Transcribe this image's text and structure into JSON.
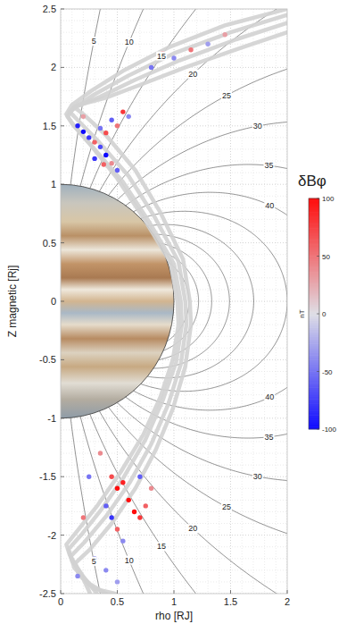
{
  "chart_data": {
    "type": "scatter",
    "xlabel": "rho [RJ]",
    "ylabel": "Z magnetic [Rj]",
    "xlim": [
      0,
      2
    ],
    "ylim": [
      -2.5,
      2.5
    ],
    "xticks": [
      0,
      0.5,
      1,
      1.5,
      2
    ],
    "yticks": [
      -2.5,
      -2,
      -1.5,
      -1,
      -0.5,
      0,
      0.5,
      1,
      1.5,
      2,
      2.5
    ],
    "grid": true,
    "field_lines": {
      "colatitudes": [
        5,
        10,
        15,
        20,
        25,
        30,
        35,
        40,
        45,
        50,
        55,
        60,
        65,
        70
      ],
      "labeled": [
        5,
        10,
        15,
        20,
        25,
        30,
        35,
        40
      ]
    },
    "trajectories": [
      {
        "x": [
          2.0,
          1.45,
          0.95,
          0.55,
          0.27,
          0.1,
          0.05,
          0.1,
          0.27,
          0.5,
          0.74,
          0.97,
          1.03,
          1.04,
          0.99,
          0.88,
          0.73,
          0.53,
          0.33,
          0.15,
          0.05,
          0.08,
          0.18,
          0.26
        ],
        "y": [
          2.5,
          2.36,
          2.17,
          1.97,
          1.8,
          1.68,
          1.6,
          1.52,
          1.33,
          1.05,
          0.7,
          0.33,
          0.0,
          -0.2,
          -0.5,
          -0.82,
          -1.14,
          -1.46,
          -1.74,
          -1.96,
          -2.08,
          -2.17,
          -2.33,
          -2.5
        ]
      },
      {
        "x": [
          2.0,
          1.5,
          1.0,
          0.6,
          0.3,
          0.12,
          0.06,
          0.12,
          0.3,
          0.55,
          0.78,
          1.0,
          1.06,
          1.07,
          1.02,
          0.9,
          0.75,
          0.56,
          0.36,
          0.18,
          0.07,
          0.1,
          0.22,
          0.32
        ],
        "y": [
          2.45,
          2.3,
          2.12,
          1.93,
          1.77,
          1.66,
          1.58,
          1.5,
          1.3,
          1.02,
          0.68,
          0.32,
          0.0,
          -0.2,
          -0.52,
          -0.85,
          -1.18,
          -1.5,
          -1.78,
          -2.0,
          -2.12,
          -2.22,
          -2.38,
          -2.5
        ]
      },
      {
        "x": [
          2.0,
          1.55,
          1.05,
          0.65,
          0.35,
          0.15,
          0.08,
          0.15,
          0.34,
          0.6,
          0.83,
          1.04,
          1.1,
          1.11,
          1.06,
          0.95,
          0.8,
          0.61,
          0.4,
          0.21,
          0.09,
          0.12,
          0.26,
          0.4
        ],
        "y": [
          2.38,
          2.24,
          2.06,
          1.89,
          1.75,
          1.67,
          1.62,
          1.55,
          1.36,
          1.07,
          0.72,
          0.34,
          0.0,
          -0.2,
          -0.54,
          -0.88,
          -1.22,
          -1.55,
          -1.84,
          -2.06,
          -2.18,
          -2.28,
          -2.42,
          -2.5
        ]
      },
      {
        "x": [
          2.0,
          1.6,
          1.1,
          0.7,
          0.4,
          0.2,
          0.12,
          0.2,
          0.4,
          0.66,
          0.88,
          1.08,
          1.14,
          1.15,
          1.1,
          0.99,
          0.84,
          0.66,
          0.45,
          0.26,
          0.13,
          0.16,
          0.3,
          0.48
        ],
        "y": [
          2.3,
          2.17,
          2.0,
          1.85,
          1.74,
          1.69,
          1.66,
          1.6,
          1.42,
          1.12,
          0.76,
          0.36,
          0.0,
          -0.2,
          -0.56,
          -0.92,
          -1.27,
          -1.6,
          -1.9,
          -2.12,
          -2.24,
          -2.34,
          -2.46,
          -2.5
        ]
      }
    ],
    "perturbations": {
      "x": [
        0.15,
        0.2,
        0.25,
        0.3,
        0.35,
        0.4,
        0.45,
        0.5,
        0.2,
        0.35,
        0.4,
        0.45,
        0.5,
        0.55,
        0.6,
        0.3,
        0.38,
        0.8,
        0.9,
        1.0,
        1.15,
        1.3,
        1.45,
        0.45,
        0.5,
        0.55,
        0.6,
        0.65,
        0.7,
        0.75,
        0.8,
        0.4,
        0.45,
        0.5,
        0.35,
        0.55,
        0.25,
        0.7,
        0.3,
        0.4,
        0.5,
        0.15,
        0.2
      ],
      "y": [
        1.5,
        1.45,
        1.4,
        1.36,
        1.32,
        1.25,
        1.18,
        1.12,
        1.58,
        1.48,
        1.44,
        1.55,
        1.5,
        1.62,
        1.58,
        1.22,
        1.17,
        2.0,
        2.12,
        2.08,
        2.15,
        2.2,
        2.28,
        -1.5,
        -1.6,
        -1.55,
        -1.7,
        -1.8,
        -1.85,
        -1.75,
        -1.6,
        -1.75,
        -1.85,
        -1.95,
        -1.3,
        -2.05,
        -1.5,
        -1.5,
        -2.2,
        -2.3,
        -2.4,
        -2.35,
        -1.85
      ],
      "values": [
        -90,
        -100,
        -80,
        60,
        -70,
        -100,
        40,
        -60,
        30,
        -50,
        70,
        -60,
        50,
        80,
        -40,
        -80,
        60,
        -50,
        40,
        -40,
        50,
        -30,
        30,
        70,
        100,
        90,
        100,
        100,
        80,
        60,
        40,
        -60,
        -80,
        60,
        40,
        -40,
        -50,
        -60,
        -30,
        -40,
        -30,
        -40,
        50
      ]
    },
    "colorbar": {
      "title": "δBφ",
      "label": "nT",
      "range": [
        -100,
        100
      ],
      "ticks": [
        -100,
        -50,
        0,
        50,
        100
      ]
    }
  }
}
